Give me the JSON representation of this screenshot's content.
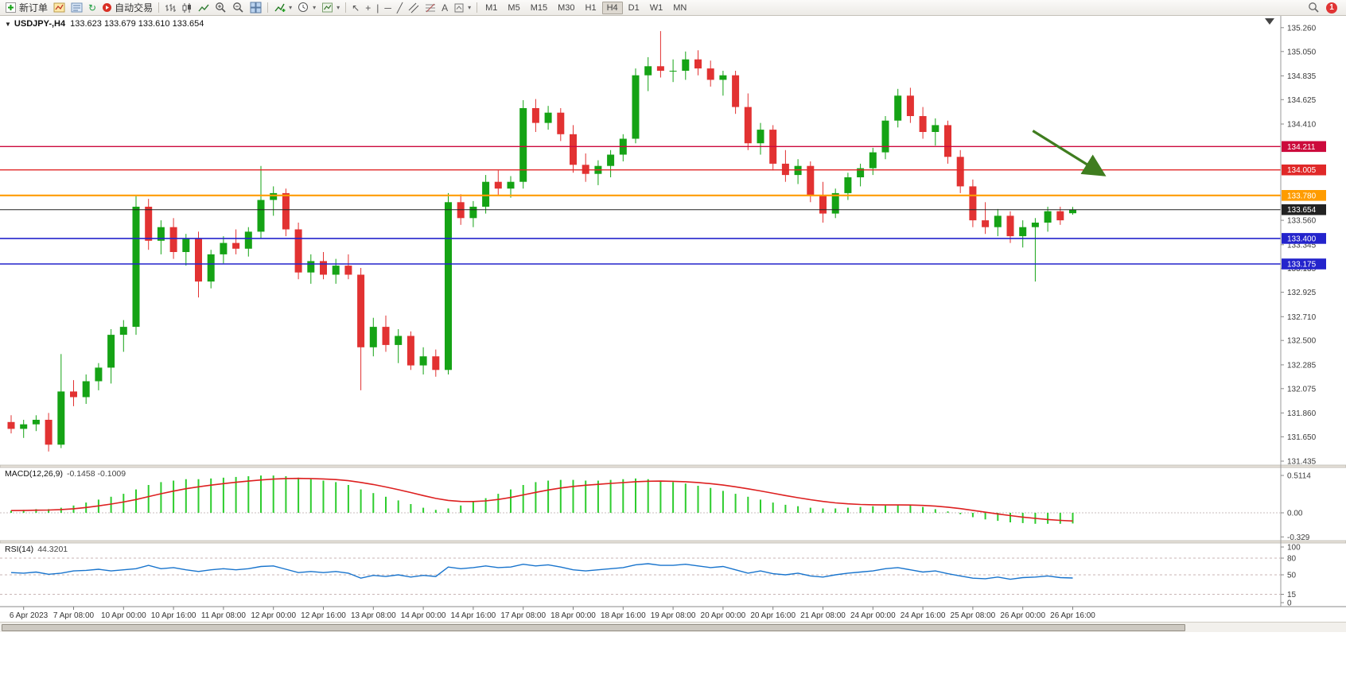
{
  "toolbar": {
    "new_order_label": "新订单",
    "auto_trading_label": "自动交易",
    "text_tool_glyph": "A",
    "timeframes": [
      "M1",
      "M5",
      "M15",
      "M30",
      "H1",
      "H4",
      "D1",
      "W1",
      "MN"
    ],
    "active_timeframe": "H4",
    "notification_count": "1"
  },
  "chart": {
    "symbol": "USDJPY-,H4",
    "ohlc": "133.623 133.679 133.610 133.654",
    "macd_label": "MACD(12,26,9)",
    "macd_values": "-0.1458 -0.1009",
    "rsi_label": "RSI(14)",
    "rsi_value": "44.3201"
  },
  "chart_data": {
    "type": "candlestick",
    "symbol": "USDJPY-",
    "timeframe": "H4",
    "ylim": [
      131.4,
      135.35
    ],
    "y_ticks": [
      135.26,
      135.05,
      134.835,
      134.625,
      134.41,
      133.56,
      133.345,
      133.135,
      132.925,
      132.71,
      132.5,
      132.285,
      132.075,
      131.86,
      131.65,
      131.435
    ],
    "price_lines": [
      {
        "price": 134.211,
        "label": "134.211",
        "color": "#cc0a3c",
        "width": 1.4
      },
      {
        "price": 134.005,
        "label": "134.005",
        "color": "#e02828",
        "width": 1.4
      },
      {
        "price": 133.78,
        "label": "133.780",
        "color": "#ff9c00",
        "width": 2.2
      },
      {
        "price": 133.4,
        "label": "133.400",
        "color": "#2424cc",
        "width": 1.6
      },
      {
        "price": 133.175,
        "label": "133.175",
        "color": "#2424cc",
        "width": 1.6
      }
    ],
    "current_price": {
      "value": 133.654,
      "label": "133.654",
      "color": "#222222"
    },
    "up_color": "#15a315",
    "down_color": "#e23232",
    "label_first_bar": 1,
    "label_step": 4,
    "time_labels": [
      "6 Apr 2023",
      "7 Apr 08:00",
      "10 Apr 00:00",
      "10 Apr 16:00",
      "11 Apr 08:00",
      "12 Apr 00:00",
      "12 Apr 16:00",
      "13 Apr 08:00",
      "14 Apr 00:00",
      "14 Apr 16:00",
      "17 Apr 08:00",
      "18 Apr 00:00",
      "18 Apr 16:00",
      "19 Apr 08:00",
      "20 Apr 00:00",
      "20 Apr 16:00",
      "21 Apr 08:00",
      "24 Apr 00:00",
      "24 Apr 16:00",
      "25 Apr 08:00",
      "26 Apr 00:00",
      "26 Apr 16:00"
    ],
    "candles": [
      [
        131.78,
        131.84,
        131.68,
        131.72
      ],
      [
        131.72,
        131.8,
        131.64,
        131.76
      ],
      [
        131.76,
        131.84,
        131.7,
        131.8
      ],
      [
        131.8,
        131.86,
        131.52,
        131.58
      ],
      [
        131.58,
        132.38,
        131.55,
        132.05
      ],
      [
        132.05,
        132.15,
        131.92,
        132.0
      ],
      [
        132.0,
        132.2,
        131.94,
        132.14
      ],
      [
        132.14,
        132.3,
        132.06,
        132.26
      ],
      [
        132.26,
        132.6,
        132.12,
        132.55
      ],
      [
        132.55,
        132.68,
        132.4,
        132.62
      ],
      [
        132.62,
        133.78,
        132.55,
        133.68
      ],
      [
        133.68,
        133.75,
        133.3,
        133.38
      ],
      [
        133.38,
        133.56,
        133.26,
        133.5
      ],
      [
        133.5,
        133.58,
        133.22,
        133.28
      ],
      [
        133.28,
        133.44,
        133.16,
        133.4
      ],
      [
        133.4,
        133.46,
        132.88,
        133.02
      ],
      [
        133.02,
        133.3,
        132.96,
        133.26
      ],
      [
        133.26,
        133.42,
        133.18,
        133.36
      ],
      [
        133.36,
        133.48,
        133.26,
        133.31
      ],
      [
        133.31,
        133.5,
        133.24,
        133.46
      ],
      [
        133.46,
        134.04,
        133.4,
        133.74
      ],
      [
        133.74,
        133.86,
        133.6,
        133.8
      ],
      [
        133.8,
        133.84,
        133.42,
        133.48
      ],
      [
        133.48,
        133.54,
        133.04,
        133.1
      ],
      [
        133.1,
        133.26,
        133.0,
        133.2
      ],
      [
        133.2,
        133.28,
        133.04,
        133.08
      ],
      [
        133.08,
        133.22,
        133.0,
        133.16
      ],
      [
        133.16,
        133.26,
        133.04,
        133.08
      ],
      [
        133.08,
        133.14,
        132.06,
        132.44
      ],
      [
        132.44,
        132.7,
        132.36,
        132.62
      ],
      [
        132.62,
        132.72,
        132.4,
        132.46
      ],
      [
        132.46,
        132.6,
        132.3,
        132.54
      ],
      [
        132.54,
        132.58,
        132.24,
        132.28
      ],
      [
        132.28,
        132.44,
        132.2,
        132.36
      ],
      [
        132.36,
        132.42,
        132.18,
        132.24
      ],
      [
        132.24,
        133.8,
        132.2,
        133.72
      ],
      [
        133.72,
        133.79,
        133.52,
        133.58
      ],
      [
        133.58,
        133.73,
        133.5,
        133.68
      ],
      [
        133.68,
        133.96,
        133.62,
        133.9
      ],
      [
        133.9,
        134.0,
        133.78,
        133.84
      ],
      [
        133.84,
        133.95,
        133.76,
        133.9
      ],
      [
        133.9,
        134.62,
        133.84,
        134.55
      ],
      [
        134.55,
        134.63,
        134.34,
        134.42
      ],
      [
        134.42,
        134.57,
        134.36,
        134.51
      ],
      [
        134.51,
        134.55,
        134.26,
        134.32
      ],
      [
        134.32,
        134.4,
        133.98,
        134.05
      ],
      [
        134.05,
        134.15,
        133.9,
        133.97
      ],
      [
        133.97,
        134.09,
        133.87,
        134.04
      ],
      [
        134.04,
        134.18,
        133.94,
        134.14
      ],
      [
        134.14,
        134.32,
        134.08,
        134.28
      ],
      [
        134.28,
        134.9,
        134.24,
        134.84
      ],
      [
        134.84,
        135.0,
        134.7,
        134.92
      ],
      [
        134.92,
        135.23,
        134.82,
        134.88
      ],
      [
        134.88,
        134.98,
        134.78,
        134.88
      ],
      [
        134.88,
        135.05,
        134.8,
        134.98
      ],
      [
        134.98,
        135.06,
        134.84,
        134.9
      ],
      [
        134.9,
        134.97,
        134.74,
        134.8
      ],
      [
        134.8,
        134.88,
        134.66,
        134.84
      ],
      [
        134.84,
        134.88,
        134.5,
        134.56
      ],
      [
        134.56,
        134.68,
        134.18,
        134.24
      ],
      [
        134.24,
        134.42,
        134.14,
        134.36
      ],
      [
        134.36,
        134.4,
        134.0,
        134.06
      ],
      [
        134.06,
        134.18,
        133.9,
        133.96
      ],
      [
        133.96,
        134.1,
        133.88,
        134.04
      ],
      [
        134.04,
        134.08,
        133.72,
        133.78
      ],
      [
        133.78,
        133.9,
        133.54,
        133.62
      ],
      [
        133.62,
        133.84,
        133.58,
        133.8
      ],
      [
        133.8,
        133.98,
        133.74,
        133.94
      ],
      [
        133.94,
        134.06,
        133.86,
        134.02
      ],
      [
        134.02,
        134.2,
        133.96,
        134.16
      ],
      [
        134.16,
        134.48,
        134.1,
        134.44
      ],
      [
        134.44,
        134.72,
        134.38,
        134.66
      ],
      [
        134.66,
        134.73,
        134.42,
        134.48
      ],
      [
        134.48,
        134.56,
        134.28,
        134.34
      ],
      [
        134.34,
        134.46,
        134.22,
        134.4
      ],
      [
        134.4,
        134.44,
        134.06,
        134.12
      ],
      [
        134.12,
        134.18,
        133.8,
        133.86
      ],
      [
        133.86,
        133.92,
        133.5,
        133.56
      ],
      [
        133.56,
        133.72,
        133.44,
        133.5
      ],
      [
        133.5,
        133.66,
        133.42,
        133.6
      ],
      [
        133.6,
        133.64,
        133.36,
        133.42
      ],
      [
        133.42,
        133.56,
        133.32,
        133.5
      ],
      [
        133.5,
        133.58,
        133.02,
        133.54
      ],
      [
        133.54,
        133.68,
        133.46,
        133.64
      ],
      [
        133.64,
        133.68,
        133.52,
        133.56
      ],
      [
        133.623,
        133.679,
        133.61,
        133.654
      ]
    ],
    "macd": {
      "histogram": [
        0.03,
        0.04,
        0.05,
        0.05,
        0.07,
        0.1,
        0.14,
        0.18,
        0.22,
        0.26,
        0.32,
        0.38,
        0.42,
        0.44,
        0.46,
        0.46,
        0.47,
        0.48,
        0.49,
        0.5,
        0.51,
        0.51,
        0.5,
        0.48,
        0.46,
        0.44,
        0.42,
        0.38,
        0.32,
        0.27,
        0.22,
        0.17,
        0.12,
        0.07,
        0.04,
        0.06,
        0.1,
        0.15,
        0.2,
        0.26,
        0.32,
        0.38,
        0.42,
        0.44,
        0.45,
        0.45,
        0.44,
        0.44,
        0.45,
        0.46,
        0.47,
        0.46,
        0.44,
        0.42,
        0.4,
        0.37,
        0.34,
        0.3,
        0.26,
        0.22,
        0.18,
        0.14,
        0.11,
        0.09,
        0.07,
        0.06,
        0.06,
        0.07,
        0.08,
        0.09,
        0.1,
        0.11,
        0.1,
        0.08,
        0.05,
        0.02,
        -0.02,
        -0.06,
        -0.09,
        -0.11,
        -0.13,
        -0.14,
        -0.15,
        -0.15,
        -0.15,
        -0.1458
      ],
      "signal_period": 9,
      "hist_color": "#2ecc2e",
      "signal_color": "#dd2020",
      "axis_values": [
        0.5114,
        0,
        -0.329
      ],
      "axis_labels": [
        "0.5114",
        "0.00",
        "-0.329"
      ]
    },
    "rsi": {
      "values": [
        54,
        53,
        55,
        51,
        53,
        57,
        58,
        60,
        57,
        59,
        61,
        67,
        61,
        63,
        59,
        56,
        59,
        61,
        59,
        61,
        65,
        66,
        60,
        54,
        56,
        54,
        56,
        53,
        44,
        49,
        47,
        50,
        46,
        49,
        47,
        64,
        61,
        63,
        66,
        63,
        64,
        69,
        66,
        68,
        64,
        59,
        57,
        59,
        61,
        63,
        68,
        70,
        67,
        67,
        69,
        66,
        63,
        65,
        59,
        53,
        57,
        52,
        50,
        53,
        48,
        46,
        50,
        53,
        55,
        57,
        61,
        63,
        59,
        55,
        57,
        52,
        48,
        44,
        43,
        46,
        42,
        45,
        46,
        48,
        45,
        44.3201
      ],
      "levels": [
        80,
        50,
        15
      ],
      "axis_values": [
        100,
        80,
        50,
        15,
        0
      ],
      "axis_labels": [
        "100",
        "80",
        "50",
        "15",
        "0"
      ],
      "color": "#1874cd"
    },
    "arrow": {
      "x1_bar": 81.8,
      "p1": 134.35,
      "x2_bar": 87.5,
      "p2": 133.96,
      "color": "#3f7d1f"
    }
  }
}
